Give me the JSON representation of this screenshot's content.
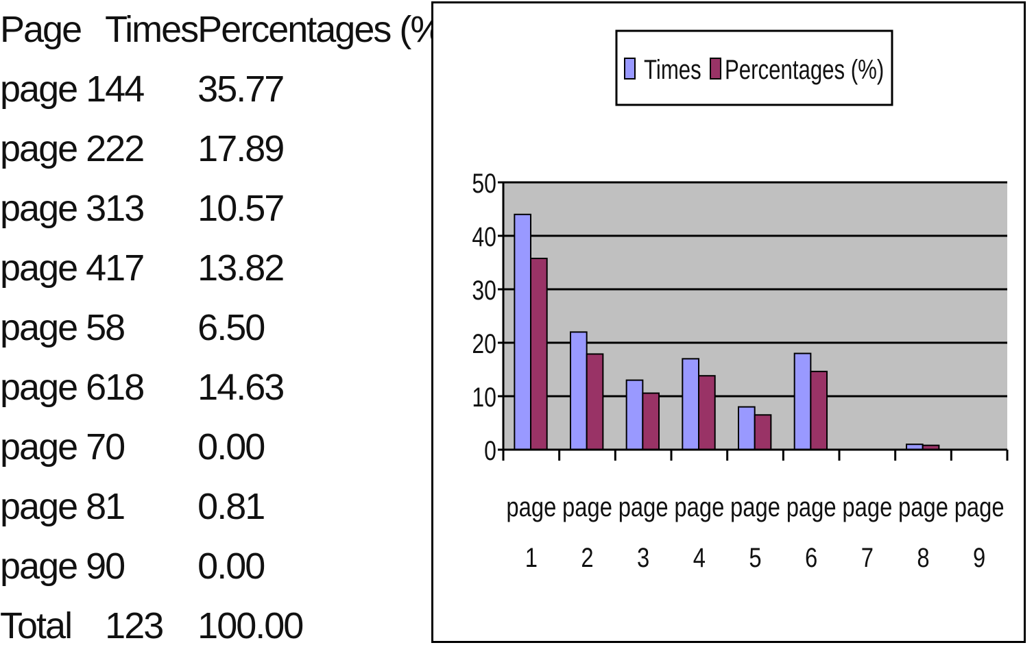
{
  "table": {
    "headers": [
      "Page",
      "Times",
      "Percentages (%)"
    ],
    "rows": [
      [
        "page 1",
        "44",
        "35.77"
      ],
      [
        "page 2",
        "22",
        "17.89"
      ],
      [
        "page 3",
        "13",
        "10.57"
      ],
      [
        "page 4",
        "17",
        "13.82"
      ],
      [
        "page 5",
        "8",
        "6.50"
      ],
      [
        "page 6",
        "18",
        "14.63"
      ],
      [
        "page 7",
        "0",
        "0.00"
      ],
      [
        "page 8",
        "1",
        "0.81"
      ],
      [
        "page 9",
        "0",
        "0.00"
      ],
      [
        "Total",
        "123",
        "100.00"
      ]
    ]
  },
  "chart_data": {
    "type": "bar",
    "categories": [
      "page 1",
      "page 2",
      "page 3",
      "page 4",
      "page 5",
      "page 6",
      "page 7",
      "page 8",
      "page 9"
    ],
    "series": [
      {
        "name": "Times",
        "values": [
          44,
          22,
          13,
          17,
          8,
          18,
          0,
          1,
          0
        ],
        "color": "#9999ff"
      },
      {
        "name": "Percentages (%)",
        "values": [
          35.77,
          17.89,
          10.57,
          13.82,
          6.5,
          14.63,
          0.0,
          0.81,
          0.0
        ],
        "color": "#993366"
      }
    ],
    "ylim": [
      0,
      50
    ],
    "yticks": [
      0,
      10,
      20,
      30,
      40,
      50
    ],
    "title": "",
    "xlabel": "",
    "ylabel": "",
    "grid": true,
    "legend_position": "top",
    "plot_background": "#c0c0c0"
  }
}
